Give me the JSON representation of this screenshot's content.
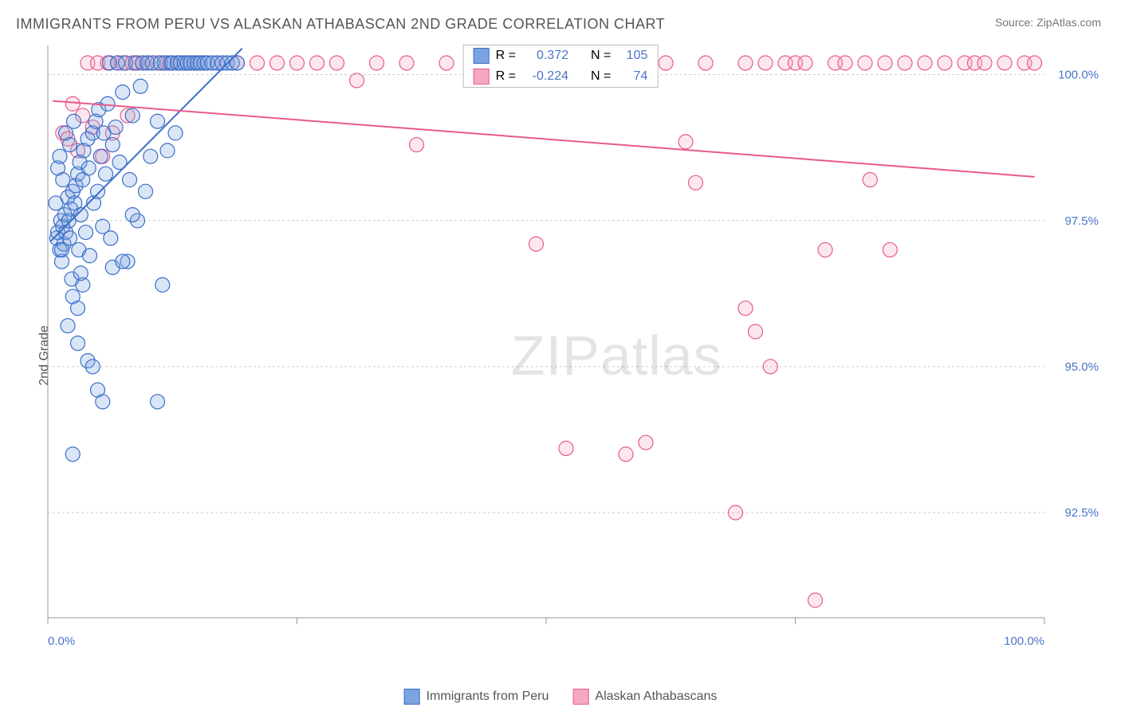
{
  "title": "IMMIGRANTS FROM PERU VS ALASKAN ATHABASCAN 2ND GRADE CORRELATION CHART",
  "source_label": "Source: ",
  "source_name": "ZipAtlas.com",
  "ylabel": "2nd Grade",
  "watermark_a": "ZIP",
  "watermark_b": "atlas",
  "chart": {
    "type": "scatter",
    "xlim": [
      0,
      100
    ],
    "ylim": [
      90.7,
      100.5
    ],
    "x_ticks": [
      0,
      100
    ],
    "x_tick_labels": [
      "0.0%",
      "100.0%"
    ],
    "x_minor_ticks": [
      25,
      50,
      75
    ],
    "y_ticks": [
      92.5,
      95.0,
      97.5,
      100.0
    ],
    "y_tick_labels": [
      "92.5%",
      "95.0%",
      "97.5%",
      "100.0%"
    ],
    "background_color": "#ffffff",
    "grid_color": "#cccccc",
    "axis_color": "#999999",
    "marker_radius": 9,
    "marker_stroke_width": 1.2,
    "marker_fill_opacity": 0.28,
    "trend_line_width": 2
  },
  "series": [
    {
      "name": "Immigrants from Peru",
      "color_stroke": "#3b6fc9",
      "color_fill": "#7ba3e0",
      "R": "0.372",
      "N": "105",
      "trend": {
        "x1": 0.3,
        "y1": 97.15,
        "x2": 19.5,
        "y2": 100.45
      },
      "points": [
        [
          0.9,
          97.2
        ],
        [
          1.0,
          97.3
        ],
        [
          1.2,
          97.0
        ],
        [
          1.3,
          97.5
        ],
        [
          1.5,
          97.4
        ],
        [
          1.6,
          97.1
        ],
        [
          1.4,
          96.8
        ],
        [
          1.7,
          97.6
        ],
        [
          1.8,
          97.3
        ],
        [
          2.0,
          97.9
        ],
        [
          2.1,
          97.5
        ],
        [
          2.2,
          97.2
        ],
        [
          2.3,
          97.7
        ],
        [
          2.5,
          98.0
        ],
        [
          2.4,
          96.5
        ],
        [
          2.7,
          97.8
        ],
        [
          2.8,
          98.1
        ],
        [
          3.0,
          98.3
        ],
        [
          3.1,
          97.0
        ],
        [
          3.2,
          98.5
        ],
        [
          3.3,
          97.6
        ],
        [
          3.5,
          98.2
        ],
        [
          3.6,
          98.7
        ],
        [
          3.8,
          97.3
        ],
        [
          4.0,
          98.9
        ],
        [
          4.1,
          98.4
        ],
        [
          4.2,
          96.9
        ],
        [
          4.5,
          99.0
        ],
        [
          4.6,
          97.8
        ],
        [
          4.8,
          99.2
        ],
        [
          5.0,
          98.0
        ],
        [
          5.1,
          99.4
        ],
        [
          5.3,
          98.6
        ],
        [
          5.5,
          97.4
        ],
        [
          5.6,
          99.0
        ],
        [
          5.8,
          98.3
        ],
        [
          6.0,
          99.5
        ],
        [
          6.2,
          100.2
        ],
        [
          6.3,
          97.2
        ],
        [
          6.5,
          98.8
        ],
        [
          6.8,
          99.1
        ],
        [
          7.0,
          100.2
        ],
        [
          7.2,
          98.5
        ],
        [
          7.5,
          99.7
        ],
        [
          7.8,
          100.2
        ],
        [
          8.0,
          96.8
        ],
        [
          8.2,
          98.2
        ],
        [
          8.5,
          99.3
        ],
        [
          8.8,
          100.2
        ],
        [
          9.0,
          97.5
        ],
        [
          9.3,
          99.8
        ],
        [
          9.5,
          100.2
        ],
        [
          9.8,
          98.0
        ],
        [
          10.0,
          100.2
        ],
        [
          10.3,
          98.6
        ],
        [
          10.5,
          100.2
        ],
        [
          11.0,
          99.2
        ],
        [
          11.3,
          100.2
        ],
        [
          11.5,
          96.4
        ],
        [
          11.7,
          100.2
        ],
        [
          12.0,
          98.7
        ],
        [
          12.3,
          100.2
        ],
        [
          12.5,
          100.2
        ],
        [
          12.8,
          99.0
        ],
        [
          13.0,
          100.2
        ],
        [
          13.3,
          100.2
        ],
        [
          13.7,
          100.2
        ],
        [
          14.0,
          100.2
        ],
        [
          14.3,
          100.2
        ],
        [
          14.7,
          100.2
        ],
        [
          15.0,
          100.2
        ],
        [
          15.3,
          100.2
        ],
        [
          15.7,
          100.2
        ],
        [
          16.0,
          100.2
        ],
        [
          16.5,
          100.2
        ],
        [
          17.0,
          100.2
        ],
        [
          17.5,
          100.2
        ],
        [
          18.0,
          100.2
        ],
        [
          18.5,
          100.2
        ],
        [
          19.0,
          100.2
        ],
        [
          2.0,
          95.7
        ],
        [
          2.5,
          96.2
        ],
        [
          3.0,
          95.4
        ],
        [
          3.0,
          96.0
        ],
        [
          3.5,
          96.4
        ],
        [
          4.0,
          95.1
        ],
        [
          4.5,
          95.0
        ],
        [
          5.0,
          94.6
        ],
        [
          5.5,
          94.4
        ],
        [
          2.5,
          93.5
        ],
        [
          1.0,
          98.4
        ],
        [
          1.5,
          98.2
        ],
        [
          0.8,
          97.8
        ],
        [
          1.2,
          98.6
        ],
        [
          1.8,
          99.0
        ],
        [
          2.2,
          98.8
        ],
        [
          2.6,
          99.2
        ],
        [
          1.4,
          97.0
        ],
        [
          3.3,
          96.6
        ],
        [
          6.5,
          96.7
        ],
        [
          7.5,
          96.8
        ],
        [
          8.5,
          97.6
        ],
        [
          11.0,
          94.4
        ]
      ]
    },
    {
      "name": "Alaskan Athabascans",
      "color_stroke": "#e85a8a",
      "color_fill": "#f5a8c1",
      "R": "-0.224",
      "N": "74",
      "trend": {
        "x1": 0.5,
        "y1": 99.55,
        "x2": 99,
        "y2": 98.25
      },
      "points": [
        [
          1.5,
          99.0
        ],
        [
          2.0,
          98.9
        ],
        [
          2.5,
          99.5
        ],
        [
          3.0,
          98.7
        ],
        [
          3.5,
          99.3
        ],
        [
          4.0,
          100.2
        ],
        [
          4.5,
          99.1
        ],
        [
          5.0,
          100.2
        ],
        [
          5.5,
          98.6
        ],
        [
          6.0,
          100.2
        ],
        [
          6.5,
          99.0
        ],
        [
          7.0,
          100.2
        ],
        [
          7.5,
          100.2
        ],
        [
          8.0,
          99.3
        ],
        [
          8.5,
          100.2
        ],
        [
          9.0,
          100.2
        ],
        [
          9.5,
          100.2
        ],
        [
          10.0,
          100.2
        ],
        [
          11.0,
          100.2
        ],
        [
          12.0,
          100.2
        ],
        [
          13.0,
          100.2
        ],
        [
          14.0,
          100.2
        ],
        [
          15.0,
          100.2
        ],
        [
          17.0,
          100.2
        ],
        [
          19.0,
          100.2
        ],
        [
          21.0,
          100.2
        ],
        [
          23.0,
          100.2
        ],
        [
          25.0,
          100.2
        ],
        [
          27.0,
          100.2
        ],
        [
          29.0,
          100.2
        ],
        [
          31.0,
          99.9
        ],
        [
          33.0,
          100.2
        ],
        [
          36.0,
          100.2
        ],
        [
          37.0,
          98.8
        ],
        [
          40.0,
          100.2
        ],
        [
          45.0,
          100.2
        ],
        [
          49.0,
          97.1
        ],
        [
          51.0,
          100.2
        ],
        [
          52.0,
          93.6
        ],
        [
          55.0,
          100.2
        ],
        [
          57.0,
          100.2
        ],
        [
          58.0,
          93.5
        ],
        [
          59.0,
          100.2
        ],
        [
          60.0,
          93.7
        ],
        [
          62.0,
          100.2
        ],
        [
          64.0,
          98.85
        ],
        [
          65.0,
          98.15
        ],
        [
          66.0,
          100.2
        ],
        [
          69.0,
          92.5
        ],
        [
          70.0,
          100.2
        ],
        [
          70.0,
          96.0
        ],
        [
          71.0,
          95.6
        ],
        [
          72.0,
          100.2
        ],
        [
          72.5,
          95.0
        ],
        [
          74.0,
          100.2
        ],
        [
          75.0,
          100.2
        ],
        [
          76.0,
          100.2
        ],
        [
          77.0,
          91.0
        ],
        [
          78.0,
          97.0
        ],
        [
          79.0,
          100.2
        ],
        [
          80.0,
          100.2
        ],
        [
          82.0,
          100.2
        ],
        [
          82.5,
          98.2
        ],
        [
          84.0,
          100.2
        ],
        [
          84.5,
          97.0
        ],
        [
          86.0,
          100.2
        ],
        [
          88.0,
          100.2
        ],
        [
          90.0,
          100.2
        ],
        [
          92.0,
          100.2
        ],
        [
          93.0,
          100.2
        ],
        [
          94.0,
          100.2
        ],
        [
          96.0,
          100.2
        ],
        [
          98.0,
          100.2
        ],
        [
          99.0,
          100.2
        ]
      ]
    }
  ],
  "legend_top": {
    "r_label": "R =",
    "n_label": "N ="
  },
  "legend_bottom": {
    "label1": "Immigrants from Peru",
    "label2": "Alaskan Athabascans"
  }
}
